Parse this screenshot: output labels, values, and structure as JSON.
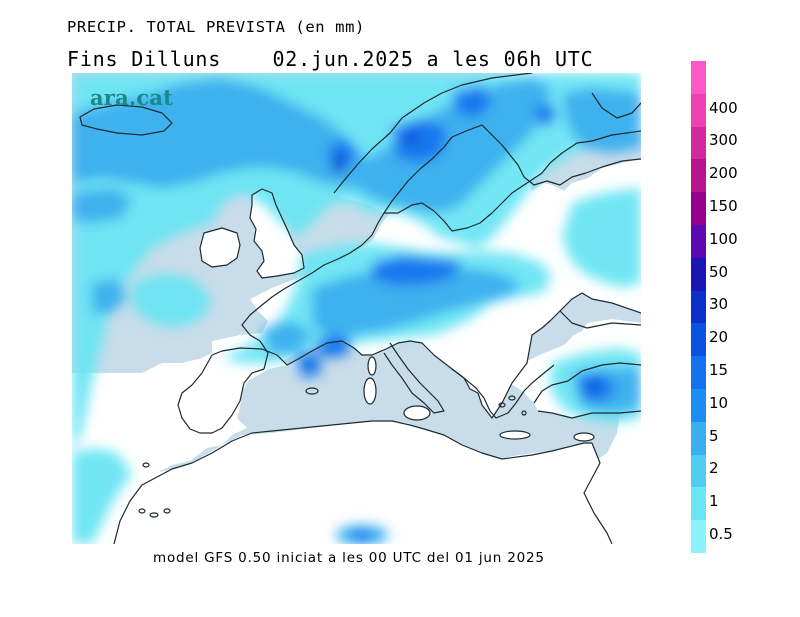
{
  "header": {
    "title": "PRECIP. TOTAL PREVISTA (en mm)",
    "subtitle_day": "Fins Dilluns",
    "subtitle_time": "02.jun.2025 a les 06h UTC"
  },
  "watermark": "ara.cat",
  "footer": "model GFS 0.50 iniciat a les 00 UTC del 01 jun 2025",
  "colors": {
    "sea": "#c8dce9",
    "land": "#ffffff",
    "coastline": "#1e2a30"
  },
  "legend": {
    "levels": [
      {
        "label": "0.5",
        "color": "#8af3f9"
      },
      {
        "label": "1",
        "color": "#6be5f4"
      },
      {
        "label": "2",
        "color": "#4fcdf2"
      },
      {
        "label": "5",
        "color": "#3aaeef"
      },
      {
        "label": "10",
        "color": "#1a8ef2"
      },
      {
        "label": "15",
        "color": "#1272ee"
      },
      {
        "label": "20",
        "color": "#0c52e0"
      },
      {
        "label": "30",
        "color": "#0a30c8"
      },
      {
        "label": "50",
        "color": "#1916b4"
      },
      {
        "label": "100",
        "color": "#5c0ab0"
      },
      {
        "label": "150",
        "color": "#94008e"
      },
      {
        "label": "200",
        "color": "#b6148c"
      },
      {
        "label": "300",
        "color": "#d4289e"
      },
      {
        "label": "400",
        "color": "#ee40b4"
      },
      {
        "label": "",
        "color": "#fc58c8"
      }
    ]
  }
}
